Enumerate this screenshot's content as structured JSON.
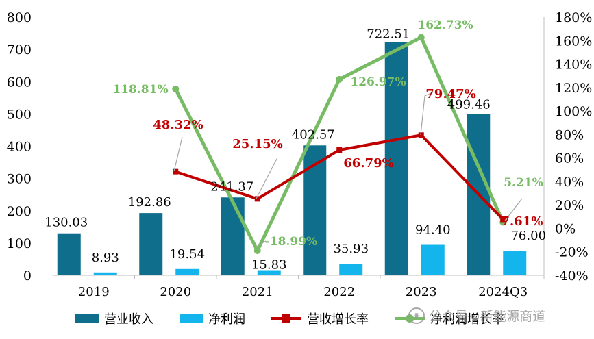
{
  "chart_data": {
    "type": "bar+line",
    "categories": [
      "2019",
      "2020",
      "2021",
      "2022",
      "2023",
      "2024Q3"
    ],
    "y_left": {
      "min": 0,
      "max": 800,
      "step": 100
    },
    "y_right": {
      "min": -40,
      "max": 180,
      "step": 20,
      "unit": "%"
    },
    "series": [
      {
        "name": "营业收入",
        "kind": "bar",
        "axis": "left",
        "color": "#0f6e8c",
        "values": [
          130.03,
          192.86,
          241.37,
          402.57,
          722.51,
          499.46
        ],
        "labels": [
          "130.03",
          "192.86",
          "241.37",
          "402.57",
          "722.51",
          "499.46"
        ]
      },
      {
        "name": "净利润",
        "kind": "bar",
        "axis": "left",
        "color": "#14b4ec",
        "values": [
          8.93,
          19.54,
          15.83,
          35.93,
          94.4,
          76.0
        ],
        "labels": [
          "8.93",
          "19.54",
          "15.83",
          "35.93",
          "94.40",
          "76.00"
        ]
      },
      {
        "name": "营收增长率",
        "kind": "line",
        "axis": "right",
        "color": "#c00000",
        "values": [
          null,
          48.32,
          25.15,
          66.79,
          79.47,
          7.61
        ],
        "labels": [
          null,
          "48.32%",
          "25.15%",
          "66.79%",
          "79.47%",
          "7.61%"
        ]
      },
      {
        "name": "净利润增长率",
        "kind": "line",
        "axis": "right",
        "color": "#77bc65",
        "values": [
          null,
          118.81,
          -18.99,
          126.97,
          162.73,
          5.21
        ],
        "labels": [
          null,
          "118.81%",
          "-18.99%",
          "126.97%",
          "162.73%",
          "5.21%"
        ]
      }
    ]
  },
  "watermark": {
    "text": "公众号 · 新能源商道"
  }
}
